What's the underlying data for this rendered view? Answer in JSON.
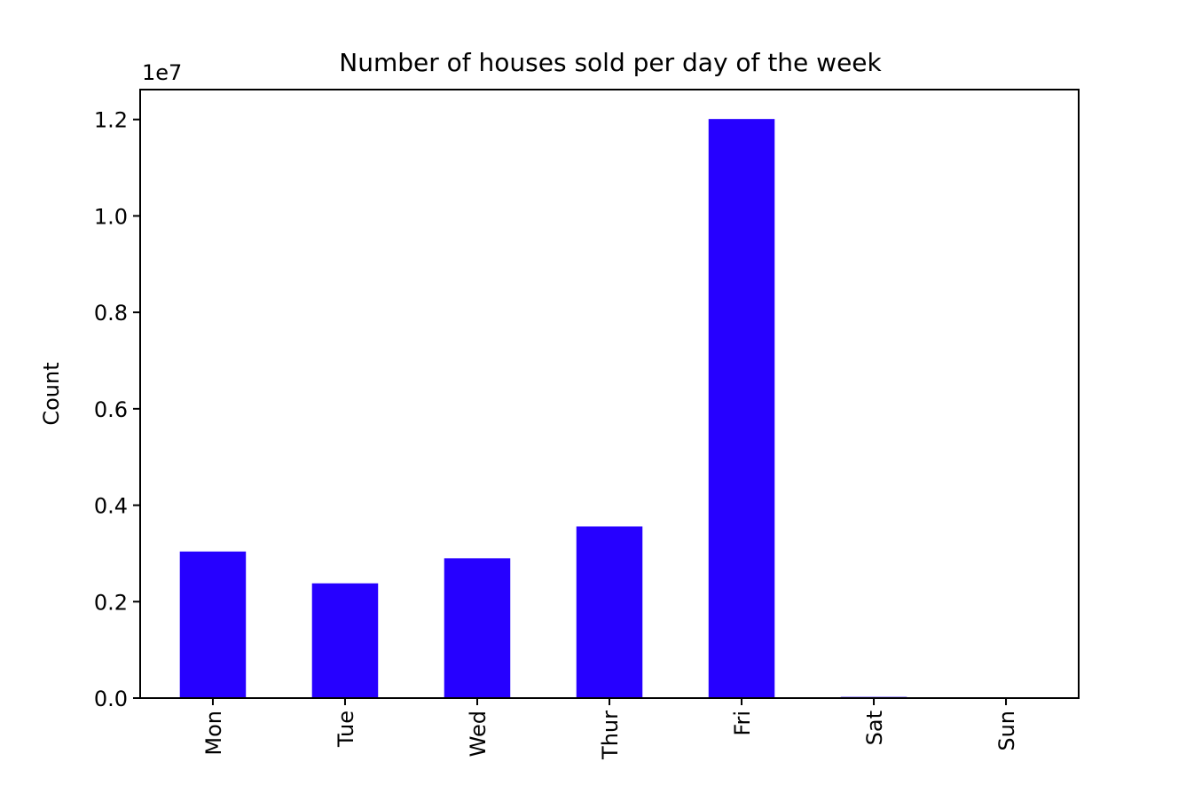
{
  "chart_data": {
    "type": "bar",
    "title": "Number of houses sold per day of the week",
    "xlabel": "",
    "ylabel": "Count",
    "y_offset_label": "1e7",
    "categories": [
      "Mon",
      "Tue",
      "Wed",
      "Thur",
      "Fri",
      "Sat",
      "Sun"
    ],
    "values": [
      3040000,
      2380000,
      2900000,
      3560000,
      12010000,
      25000,
      18000
    ],
    "y_scale": 10000000,
    "ylim": [
      0,
      12620000
    ],
    "y_ticks": [
      0.0,
      0.2,
      0.4,
      0.6,
      0.8,
      1.0,
      1.2
    ],
    "y_tick_labels": [
      "0.0",
      "0.2",
      "0.4",
      "0.6",
      "0.8",
      "1.0",
      "1.2"
    ],
    "bar_color": "#2600ff",
    "grid": false,
    "legend": "none"
  }
}
